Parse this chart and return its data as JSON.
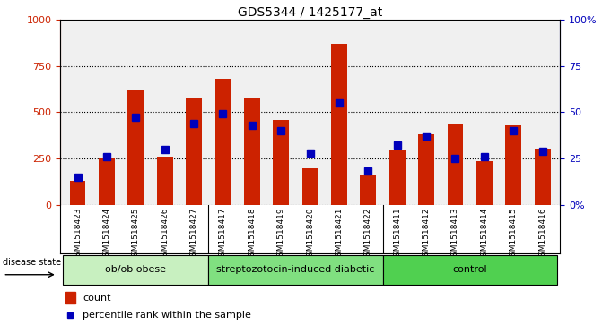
{
  "title": "GDS5344 / 1425177_at",
  "samples": [
    "GSM1518423",
    "GSM1518424",
    "GSM1518425",
    "GSM1518426",
    "GSM1518427",
    "GSM1518417",
    "GSM1518418",
    "GSM1518419",
    "GSM1518420",
    "GSM1518421",
    "GSM1518422",
    "GSM1518411",
    "GSM1518412",
    "GSM1518413",
    "GSM1518414",
    "GSM1518415",
    "GSM1518416"
  ],
  "counts": [
    130,
    255,
    620,
    260,
    580,
    680,
    580,
    460,
    195,
    870,
    165,
    300,
    380,
    440,
    235,
    430,
    305
  ],
  "percentiles": [
    15,
    26,
    47,
    30,
    44,
    49,
    43,
    40,
    28,
    55,
    18,
    32,
    37,
    25,
    26,
    40,
    29
  ],
  "groups": [
    {
      "name": "ob/ob obese",
      "start": 0,
      "end": 5,
      "color": "#c8f0c0"
    },
    {
      "name": "streptozotocin-induced diabetic",
      "start": 5,
      "end": 11,
      "color": "#80e080"
    },
    {
      "name": "control",
      "start": 11,
      "end": 17,
      "color": "#50d050"
    }
  ],
  "bar_color": "#cc2200",
  "dot_color": "#0000bb",
  "left_axis_color": "#cc2200",
  "right_axis_color": "#0000bb",
  "ylim_left": [
    0,
    1000
  ],
  "ylim_right": [
    0,
    100
  ],
  "yticks_left": [
    0,
    250,
    500,
    750,
    1000
  ],
  "yticks_right": [
    0,
    25,
    50,
    75,
    100
  ],
  "ytick_labels_left": [
    "0",
    "250",
    "500",
    "750",
    "1000"
  ],
  "ytick_labels_right": [
    "0%",
    "25",
    "50",
    "75",
    "100%"
  ],
  "tick_bg_color": "#d8d8d8",
  "plot_bg_color": "#f0f0f0",
  "bar_width": 0.55,
  "dot_size": 6
}
